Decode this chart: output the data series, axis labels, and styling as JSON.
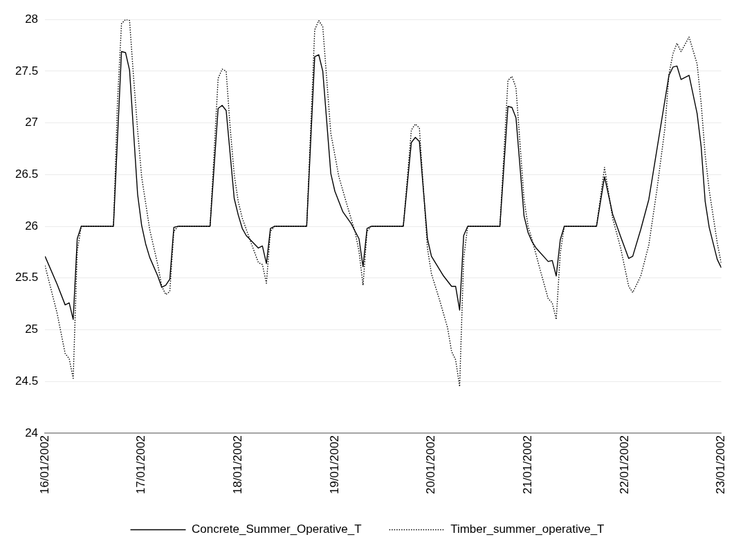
{
  "chart_data": {
    "type": "line",
    "ylim": [
      24,
      28
    ],
    "yticks": [
      24,
      24.5,
      25,
      25.5,
      26,
      26.5,
      27,
      27.5,
      28
    ],
    "xlim": [
      "2002-01-16",
      "2002-01-23"
    ],
    "xticks": [
      {
        "value": "2002-01-16",
        "label": "16/01/2002"
      },
      {
        "value": "2002-01-17",
        "label": "17/01/2002"
      },
      {
        "value": "2002-01-18",
        "label": "18/01/2002"
      },
      {
        "value": "2002-01-19",
        "label": "19/01/2002"
      },
      {
        "value": "2002-01-20",
        "label": "20/01/2002"
      },
      {
        "value": "2002-01-21",
        "label": "21/01/2002"
      },
      {
        "value": "2002-01-22",
        "label": "22/01/2002"
      },
      {
        "value": "2002-01-23",
        "label": "23/01/2002"
      }
    ],
    "grid": "y",
    "legend": "bottom",
    "marker": "none",
    "series": [
      {
        "name": "Concrete_Summer_Operative_T",
        "color": "#000000",
        "line_style": "solid",
        "x": [
          "2002-01-16T00:00",
          "2002-01-16T03:00",
          "2002-01-16T05:00",
          "2002-01-16T06:00",
          "2002-01-16T07:00",
          "2002-01-16T08:00",
          "2002-01-16T09:00",
          "2002-01-16T17:00",
          "2002-01-16T19:00",
          "2002-01-16T20:00",
          "2002-01-16T21:00",
          "2002-01-16T23:00",
          "2002-01-17T00:00",
          "2002-01-17T01:00",
          "2002-01-17T02:00",
          "2002-01-17T04:00",
          "2002-01-17T05:00",
          "2002-01-17T06:00",
          "2002-01-17T07:00",
          "2002-01-17T08:00",
          "2002-01-17T09:00",
          "2002-01-17T17:00",
          "2002-01-17T19:00",
          "2002-01-17T20:00",
          "2002-01-17T21:00",
          "2002-01-17T23:00",
          "2002-01-18T00:00",
          "2002-01-18T01:00",
          "2002-01-18T02:00",
          "2002-01-18T05:00",
          "2002-01-18T06:00",
          "2002-01-18T07:00",
          "2002-01-18T08:00",
          "2002-01-18T09:00",
          "2002-01-18T17:00",
          "2002-01-18T19:00",
          "2002-01-18T20:00",
          "2002-01-18T21:00",
          "2002-01-18T23:00",
          "2002-01-19T00:00",
          "2002-01-19T02:00",
          "2002-01-19T04:00",
          "2002-01-19T06:00",
          "2002-01-19T07:00",
          "2002-01-19T08:00",
          "2002-01-19T09:00",
          "2002-01-19T17:00",
          "2002-01-19T19:00",
          "2002-01-19T20:00",
          "2002-01-19T21:00",
          "2002-01-19T23:00",
          "2002-01-20T00:00",
          "2002-01-20T03:00",
          "2002-01-20T05:00",
          "2002-01-20T06:00",
          "2002-01-20T07:00",
          "2002-01-20T08:00",
          "2002-01-20T09:00",
          "2002-01-20T17:00",
          "2002-01-20T19:00",
          "2002-01-20T20:00",
          "2002-01-20T21:00",
          "2002-01-20T23:00",
          "2002-01-21T00:00",
          "2002-01-21T01:00",
          "2002-01-21T02:00",
          "2002-01-21T05:00",
          "2002-01-21T06:00",
          "2002-01-21T07:00",
          "2002-01-21T08:00",
          "2002-01-21T09:00",
          "2002-01-21T17:00",
          "2002-01-21T19:00",
          "2002-01-21T21:00",
          "2002-01-21T23:00",
          "2002-01-22T01:00",
          "2002-01-22T02:00",
          "2002-01-22T04:00",
          "2002-01-22T06:00",
          "2002-01-22T08:00",
          "2002-01-22T11:00",
          "2002-01-22T12:00",
          "2002-01-22T13:00",
          "2002-01-22T14:00",
          "2002-01-22T16:00",
          "2002-01-22T18:00",
          "2002-01-22T19:00",
          "2002-01-22T20:00",
          "2002-01-22T21:00",
          "2002-01-22T23:00",
          "2002-01-23T00:00"
        ],
        "values": [
          25.71,
          25.44,
          25.24,
          25.26,
          25.1,
          25.88,
          26,
          26,
          27.69,
          27.68,
          27.51,
          26.31,
          26.01,
          25.83,
          25.7,
          25.52,
          25.41,
          25.43,
          25.49,
          25.99,
          26,
          26,
          27.14,
          27.17,
          27.12,
          26.27,
          26.11,
          25.98,
          25.91,
          25.79,
          25.81,
          25.64,
          25.98,
          26,
          26,
          27.64,
          27.66,
          27.5,
          26.51,
          26.34,
          26.14,
          26.03,
          25.88,
          25.61,
          25.98,
          26,
          26,
          26.81,
          26.86,
          26.82,
          25.88,
          25.71,
          25.52,
          25.42,
          25.42,
          25.19,
          25.91,
          26,
          26,
          27.16,
          27.15,
          27.05,
          26.1,
          25.94,
          25.85,
          25.79,
          25.66,
          25.67,
          25.52,
          25.87,
          26,
          26,
          26.48,
          26.12,
          25.9,
          25.69,
          25.71,
          25.97,
          26.26,
          26.74,
          27.46,
          27.54,
          27.55,
          27.42,
          27.46,
          27.09,
          26.77,
          26.24,
          25.99,
          25.68,
          25.6
        ]
      },
      {
        "name": "Timber_summer_operative_T",
        "color": "#000000",
        "line_style": "dotted",
        "x": [
          "2002-01-16T00:00",
          "2002-01-16T03:00",
          "2002-01-16T05:00",
          "2002-01-16T06:00",
          "2002-01-16T07:00",
          "2002-01-16T08:00",
          "2002-01-16T09:00",
          "2002-01-16T17:00",
          "2002-01-16T18:00",
          "2002-01-16T19:00",
          "2002-01-16T20:00",
          "2002-01-16T21:00",
          "2002-01-16T22:00",
          "2002-01-16T23:00",
          "2002-01-17T00:00",
          "2002-01-17T02:00",
          "2002-01-17T04:00",
          "2002-01-17T05:00",
          "2002-01-17T06:00",
          "2002-01-17T07:00",
          "2002-01-17T08:00",
          "2002-01-17T09:00",
          "2002-01-17T17:00",
          "2002-01-17T19:00",
          "2002-01-17T20:00",
          "2002-01-17T21:00",
          "2002-01-17T22:00",
          "2002-01-17T23:00",
          "2002-01-18T00:00",
          "2002-01-18T01:00",
          "2002-01-18T03:00",
          "2002-01-18T05:00",
          "2002-01-18T06:00",
          "2002-01-18T07:00",
          "2002-01-18T08:00",
          "2002-01-18T09:00",
          "2002-01-18T17:00",
          "2002-01-18T19:00",
          "2002-01-18T20:00",
          "2002-01-18T21:00",
          "2002-01-18T23:00",
          "2002-01-19T01:00",
          "2002-01-19T03:00",
          "2002-01-19T05:00",
          "2002-01-19T06:00",
          "2002-01-19T07:00",
          "2002-01-19T08:00",
          "2002-01-19T09:00",
          "2002-01-19T17:00",
          "2002-01-19T19:00",
          "2002-01-19T20:00",
          "2002-01-19T21:00",
          "2002-01-19T23:00",
          "2002-01-20T00:00",
          "2002-01-20T02:00",
          "2002-01-20T04:00",
          "2002-01-20T05:00",
          "2002-01-20T06:00",
          "2002-01-20T07:00",
          "2002-01-20T08:00",
          "2002-01-20T09:00",
          "2002-01-20T17:00",
          "2002-01-20T19:00",
          "2002-01-20T20:00",
          "2002-01-20T21:00",
          "2002-01-20T23:00",
          "2002-01-21T00:00",
          "2002-01-21T01:00",
          "2002-01-21T03:00",
          "2002-01-21T05:00",
          "2002-01-21T06:00",
          "2002-01-21T07:00",
          "2002-01-21T08:00",
          "2002-01-21T09:00",
          "2002-01-21T17:00",
          "2002-01-21T19:00",
          "2002-01-21T21:00",
          "2002-01-21T23:00",
          "2002-01-22T01:00",
          "2002-01-22T02:00",
          "2002-01-22T04:00",
          "2002-01-22T06:00",
          "2002-01-22T08:00",
          "2002-01-22T10:00",
          "2002-01-22T11:00",
          "2002-01-22T12:00",
          "2002-01-22T13:00",
          "2002-01-22T14:00",
          "2002-01-22T16:00",
          "2002-01-22T18:00",
          "2002-01-22T19:00",
          "2002-01-22T20:00",
          "2002-01-22T21:00",
          "2002-01-22T23:00",
          "2002-01-23T00:00"
        ],
        "values": [
          25.62,
          25.16,
          24.77,
          24.72,
          24.53,
          25.76,
          26,
          26,
          27.2,
          27.96,
          28,
          27.99,
          27.44,
          26.93,
          26.48,
          25.97,
          25.63,
          25.42,
          25.34,
          25.37,
          25.95,
          26,
          26,
          27.43,
          27.52,
          27.5,
          26.95,
          26.5,
          26.24,
          26.08,
          25.86,
          25.65,
          25.63,
          25.45,
          25.95,
          26,
          26,
          27.9,
          27.99,
          27.93,
          26.9,
          26.48,
          26.21,
          25.95,
          25.76,
          25.43,
          25.95,
          26,
          26,
          26.93,
          26.99,
          26.95,
          25.79,
          25.54,
          25.29,
          25.02,
          24.79,
          24.71,
          24.45,
          25.69,
          26,
          26,
          27.41,
          27.45,
          27.34,
          26.26,
          26,
          25.87,
          25.58,
          25.3,
          25.26,
          25.1,
          25.74,
          26,
          26,
          26.57,
          26.08,
          25.79,
          25.42,
          25.36,
          25.52,
          25.82,
          26.35,
          26.95,
          27.47,
          27.67,
          27.77,
          27.69,
          27.83,
          27.57,
          27.19,
          26.69,
          26.35,
          25.84,
          25.64
        ]
      }
    ]
  }
}
